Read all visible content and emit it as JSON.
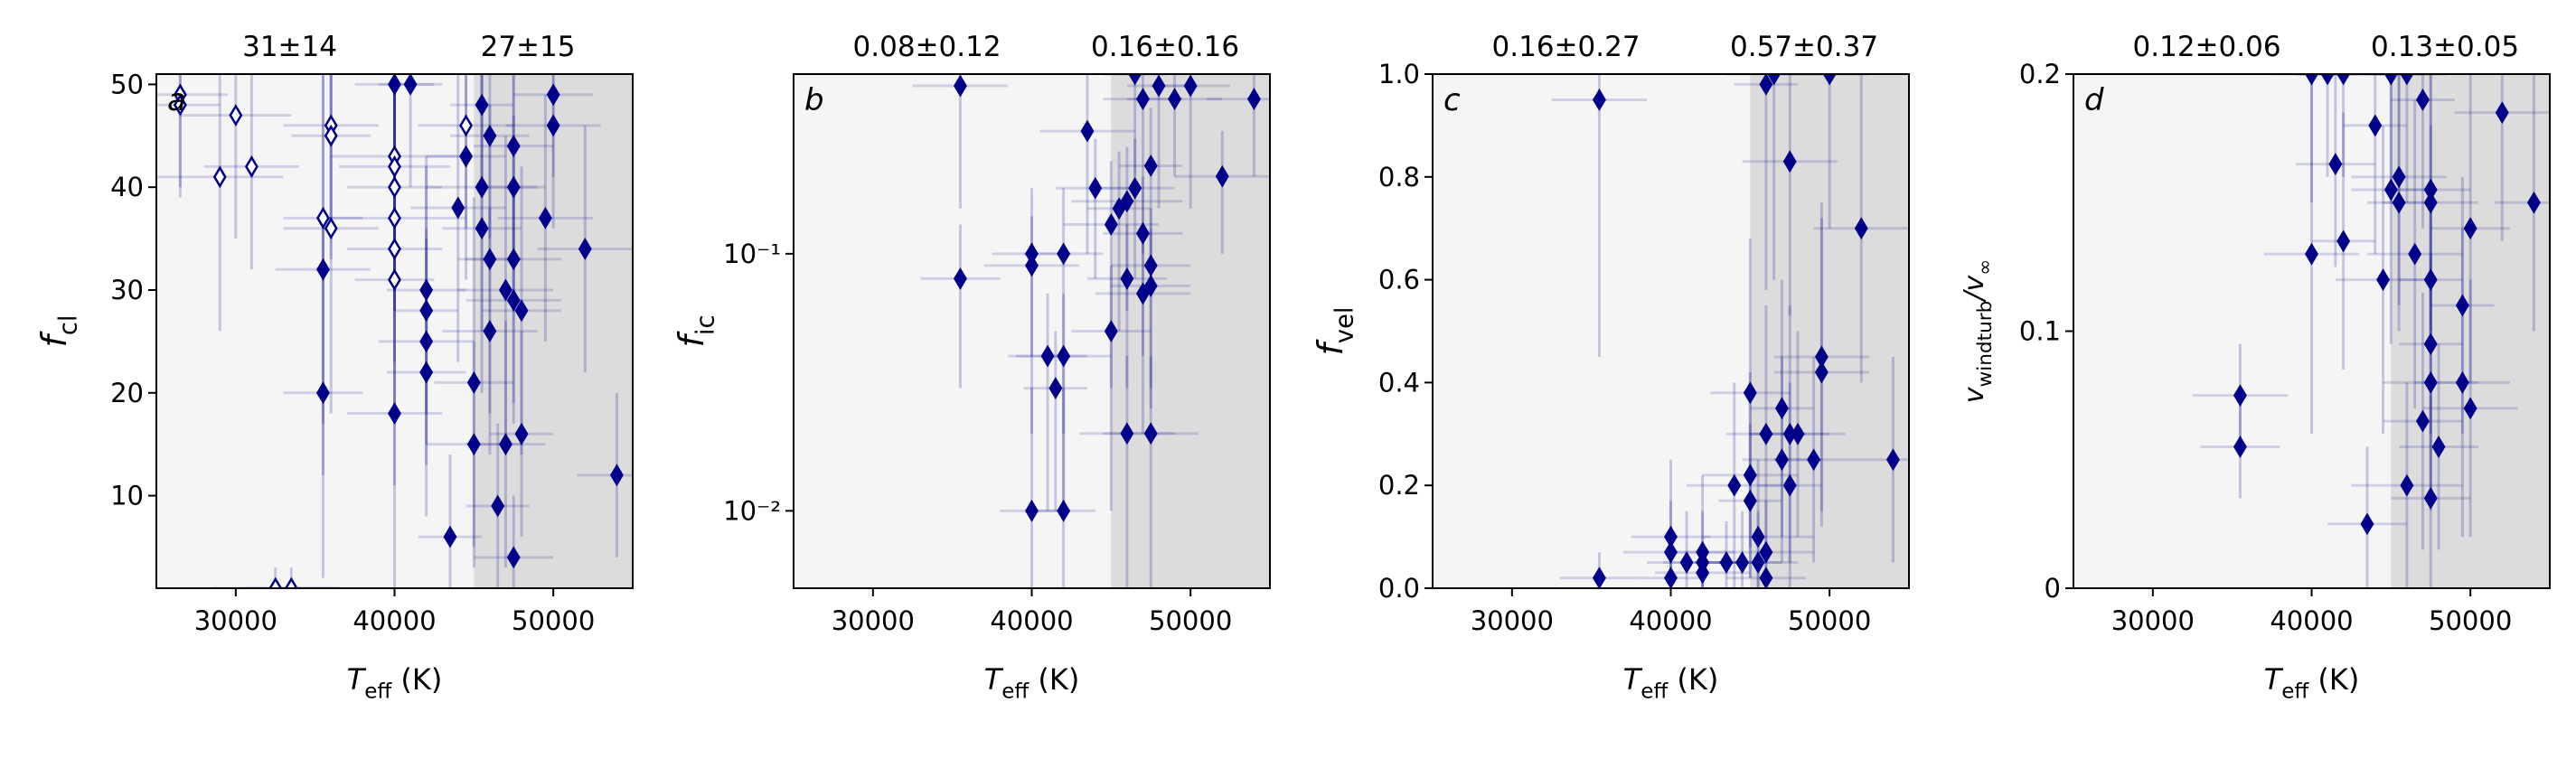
{
  "chart_data": [
    {
      "type": "scatter",
      "panel_label": "a",
      "annotations": [
        "31±14",
        "27±15"
      ],
      "xlabel": [
        "T",
        "eff",
        " (K)"
      ],
      "ylabel": [
        "f",
        "cl"
      ],
      "xlim": [
        25000,
        55000
      ],
      "xticks": [
        30000,
        40000,
        50000
      ],
      "ylim": [
        1,
        51
      ],
      "yticks": [
        10,
        20,
        30,
        40,
        50
      ],
      "ylog": false,
      "background": "#f5f5f5",
      "shade_color": "#dcdcdc",
      "shade_from": 45000,
      "series": [
        {
          "color": "#00008b",
          "filled": true,
          "x": [
            35500,
            35500,
            40000,
            40000,
            41000,
            42000,
            42000,
            42000,
            42000,
            43500,
            44000,
            44500,
            45000,
            45000,
            45500,
            45500,
            45500,
            46000,
            46000,
            46500,
            47000,
            47000,
            47500,
            47500,
            47500,
            47500,
            48000,
            49500,
            50000,
            50000,
            52000,
            54000,
            46000,
            47500,
            48000
          ],
          "values": [
            32,
            20,
            50,
            18,
            50,
            30,
            28,
            25,
            22,
            6,
            38,
            43,
            21,
            15,
            48,
            40,
            36,
            26,
            45,
            9,
            15,
            30,
            44,
            40,
            33,
            4,
            16,
            37,
            49,
            46,
            34,
            12,
            33,
            29,
            28
          ],
          "xerr": [
            3000,
            2500,
            2500,
            3000,
            2000,
            2500,
            2000,
            3000,
            2500,
            2000,
            3000,
            2500,
            2500,
            3000,
            2000,
            3500,
            2500,
            3000,
            2500,
            2000,
            2500,
            3000,
            2500,
            2000,
            3000,
            2500,
            2000,
            3000,
            2500,
            3000,
            3000,
            2500,
            2000,
            3000,
            2500
          ],
          "yerr": [
            20,
            18,
            15,
            20,
            10,
            12,
            15,
            10,
            14,
            8,
            15,
            12,
            18,
            10,
            8,
            14,
            16,
            12,
            10,
            8,
            12,
            15,
            10,
            12,
            14,
            6,
            10,
            12,
            8,
            10,
            12,
            8,
            15,
            12,
            14
          ]
        },
        {
          "color": "#00008b",
          "filled": false,
          "x": [
            26500,
            26500,
            29000,
            30000,
            31000,
            32500,
            33500,
            35500,
            36000,
            36000,
            36000,
            40000,
            40000,
            40000,
            40000,
            40000,
            40000,
            44500
          ],
          "values": [
            49,
            48,
            41,
            47,
            42,
            1,
            1,
            37,
            46,
            45,
            36,
            43,
            42,
            40,
            37,
            34,
            31,
            46
          ],
          "xerr": [
            3000,
            2500,
            4000,
            3500,
            3000,
            4000,
            3000,
            2500,
            3000,
            2500,
            3000,
            4000,
            3500,
            3000,
            4500,
            3000,
            2500,
            3000
          ],
          "yerr": [
            10,
            8,
            15,
            12,
            10,
            2,
            2,
            20,
            10,
            12,
            18,
            15,
            10,
            12,
            14,
            16,
            20,
            10
          ]
        }
      ]
    },
    {
      "type": "scatter",
      "panel_label": "b",
      "annotations": [
        "0.08±0.12",
        "0.16±0.16"
      ],
      "xlabel": [
        "T",
        "eff",
        " (K)"
      ],
      "ylabel": [
        "f",
        "ic"
      ],
      "xlim": [
        25000,
        55000
      ],
      "xticks": [
        30000,
        40000,
        50000
      ],
      "ylim": [
        0.005,
        0.5
      ],
      "yticks": [
        {
          "value": 0.01,
          "label": "10⁻²"
        },
        {
          "value": 0.1,
          "label": "10⁻¹"
        }
      ],
      "ylog": true,
      "background": "#f5f5f5",
      "shade_color": "#dcdcdc",
      "shade_from": 45000,
      "series": [
        {
          "color": "#00008b",
          "filled": true,
          "x": [
            35500,
            35500,
            40000,
            40000,
            40000,
            41000,
            41500,
            42000,
            42000,
            42000,
            43500,
            44000,
            45000,
            45000,
            45500,
            46000,
            46000,
            46000,
            46500,
            46500,
            47000,
            47000,
            47000,
            47500,
            47500,
            47500,
            48000,
            49000,
            50000,
            52000,
            54000,
            47500
          ],
          "values": [
            0.45,
            0.08,
            0.1,
            0.09,
            0.01,
            0.04,
            0.03,
            0.04,
            0.1,
            0.01,
            0.3,
            0.18,
            0.05,
            0.13,
            0.15,
            0.16,
            0.08,
            0.02,
            0.18,
            0.5,
            0.12,
            0.07,
            0.4,
            0.22,
            0.02,
            0.075,
            0.45,
            0.4,
            0.45,
            0.2,
            0.4,
            0.09
          ],
          "xerr": [
            3000,
            2500,
            2500,
            3000,
            2000,
            2500,
            2000,
            3000,
            2500,
            2000,
            3000,
            2500,
            2500,
            3000,
            2000,
            3500,
            2500,
            3000,
            2500,
            2000,
            2500,
            3000,
            2500,
            2000,
            3000,
            2500,
            2000,
            3000,
            2500,
            3000,
            3000,
            2500
          ],
          "yerr": [
            0.3,
            0.05,
            0.08,
            0.05,
            0.02,
            0.03,
            0.02,
            0.03,
            0.08,
            0.02,
            0.2,
            0.1,
            0.04,
            0.1,
            0.1,
            0.1,
            0.05,
            0.02,
            0.1,
            0.3,
            0.08,
            0.05,
            0.3,
            0.15,
            0.02,
            0.05,
            0.3,
            0.2,
            0.3,
            0.1,
            0.2,
            0.06
          ]
        }
      ]
    },
    {
      "type": "scatter",
      "panel_label": "c",
      "annotations": [
        "0.16±0.27",
        "0.57±0.37"
      ],
      "xlabel": [
        "T",
        "eff",
        " (K)"
      ],
      "ylabel": [
        "f",
        "vel"
      ],
      "xlim": [
        25000,
        55000
      ],
      "xticks": [
        30000,
        40000,
        50000
      ],
      "ylim": [
        0,
        1
      ],
      "yticks": [
        {
          "value": 0,
          "label": "0.0"
        },
        0.2,
        0.4,
        0.6,
        0.8,
        {
          "value": 1,
          "label": "1.0"
        }
      ],
      "ylog": false,
      "background": "#f5f5f5",
      "shade_color": "#dcdcdc",
      "shade_from": 45000,
      "series": [
        {
          "color": "#00008b",
          "filled": true,
          "x": [
            35500,
            35500,
            40000,
            40000,
            40000,
            41000,
            42000,
            42000,
            42000,
            43500,
            44000,
            44500,
            45000,
            45000,
            45000,
            45500,
            45500,
            46000,
            46000,
            46000,
            46000,
            46500,
            47000,
            47000,
            47500,
            47500,
            47500,
            48000,
            49000,
            49500,
            49500,
            50000,
            52000,
            54000
          ],
          "values": [
            0.95,
            0.02,
            0.1,
            0.07,
            0.02,
            0.05,
            0.07,
            0.03,
            0.05,
            0.05,
            0.2,
            0.05,
            0.38,
            0.22,
            0.17,
            0.1,
            0.05,
            0.07,
            0.3,
            0.98,
            0.02,
            1.0,
            0.25,
            0.35,
            0.83,
            0.3,
            0.2,
            0.3,
            0.25,
            0.42,
            0.45,
            1.0,
            0.7,
            0.25
          ],
          "xerr": [
            3000,
            2500,
            2500,
            3000,
            2000,
            2500,
            2000,
            3000,
            2500,
            2000,
            3000,
            2500,
            2500,
            3000,
            2000,
            3500,
            2500,
            3000,
            2500,
            2000,
            2500,
            3000,
            2500,
            2000,
            3000,
            2500,
            2000,
            3000,
            2500,
            3000,
            3000,
            2500,
            3000,
            2500
          ],
          "yerr": [
            0.5,
            0.05,
            0.15,
            0.1,
            0.05,
            0.1,
            0.15,
            0.05,
            0.1,
            0.08,
            0.2,
            0.1,
            0.3,
            0.2,
            0.15,
            0.15,
            0.1,
            0.1,
            0.25,
            0.4,
            0.05,
            0.4,
            0.2,
            0.25,
            0.3,
            0.25,
            0.2,
            0.2,
            0.2,
            0.3,
            0.3,
            0.3,
            0.3,
            0.2
          ]
        }
      ]
    },
    {
      "type": "scatter",
      "panel_label": "d",
      "annotations": [
        "0.12±0.06",
        "0.13±0.05"
      ],
      "xlabel": [
        "T",
        "eff",
        " (K)"
      ],
      "ylabel": [
        "v",
        "windturb",
        "/v",
        "∞"
      ],
      "xlim": [
        25000,
        55000
      ],
      "xticks": [
        30000,
        40000,
        50000
      ],
      "ylim": [
        0,
        0.2
      ],
      "yticks": [
        0,
        0.1,
        0.2
      ],
      "ylog": false,
      "background": "#f5f5f5",
      "shade_color": "#dcdcdc",
      "shade_from": 45000,
      "series": [
        {
          "color": "#00008b",
          "filled": true,
          "x": [
            35500,
            35500,
            40000,
            40000,
            41000,
            41500,
            42000,
            42000,
            43500,
            44000,
            44500,
            45000,
            45000,
            45500,
            45500,
            46000,
            46000,
            46500,
            47000,
            47000,
            47500,
            47500,
            47500,
            47500,
            47500,
            48000,
            49500,
            49500,
            50000,
            50000,
            52000,
            54000,
            47500
          ],
          "values": [
            0.075,
            0.055,
            0.2,
            0.13,
            0.2,
            0.165,
            0.135,
            0.2,
            0.025,
            0.18,
            0.12,
            0.2,
            0.155,
            0.16,
            0.15,
            0.04,
            0.2,
            0.13,
            0.065,
            0.19,
            0.155,
            0.15,
            0.035,
            0.095,
            0.08,
            0.055,
            0.11,
            0.08,
            0.14,
            0.07,
            0.185,
            0.15,
            0.12
          ],
          "xerr": [
            3000,
            2500,
            2500,
            3000,
            2000,
            2500,
            2000,
            3000,
            2500,
            2000,
            3000,
            2500,
            2500,
            3000,
            2000,
            3500,
            2500,
            3000,
            2500,
            2000,
            2500,
            3000,
            2500,
            2000,
            3000,
            2500,
            2000,
            3000,
            2500,
            3000,
            3000,
            2500,
            2000
          ],
          "yerr": [
            0.02,
            0.02,
            0.05,
            0.07,
            0.04,
            0.04,
            0.05,
            0.04,
            0.03,
            0.05,
            0.06,
            0.05,
            0.06,
            0.05,
            0.05,
            0.04,
            0.05,
            0.06,
            0.05,
            0.05,
            0.06,
            0.05,
            0.04,
            0.06,
            0.05,
            0.04,
            0.05,
            0.06,
            0.06,
            0.05,
            0.05,
            0.05,
            0.06
          ]
        }
      ]
    }
  ]
}
